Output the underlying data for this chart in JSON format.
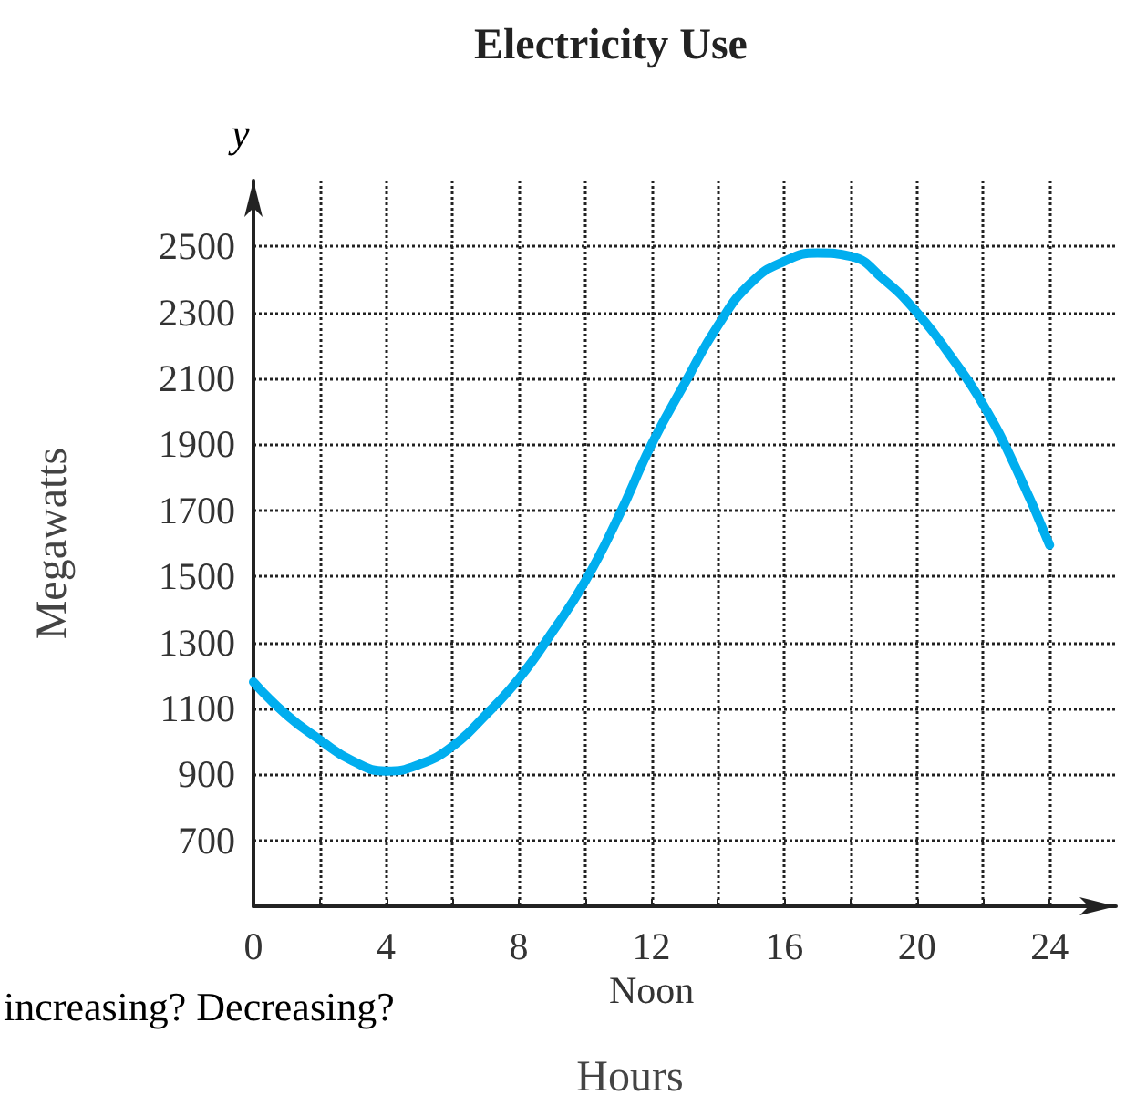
{
  "chart_data": {
    "type": "line",
    "title": "Electricity Use",
    "xlabel": "Hours",
    "ylabel": "Megawatts",
    "annotations": [
      "y",
      "increasing? Decreasing?"
    ],
    "x": [
      0,
      1,
      2,
      3,
      4,
      5,
      6,
      7,
      8,
      9,
      10,
      11,
      12,
      13,
      14,
      15,
      16,
      17,
      18,
      19,
      20,
      21,
      22,
      23,
      24
    ],
    "series": [
      {
        "color": "#00aeef",
        "values": [
          1180,
          1080,
          1005,
          940,
          910,
          930,
          985,
          1080,
          1190,
          1330,
          1485,
          1680,
          1900,
          2085,
          2260,
          2390,
          2455,
          2480,
          2470,
          2400,
          2300,
          2170,
          2020,
          1825,
          1595
        ]
      }
    ],
    "xlim": [
      0,
      26
    ],
    "ylim": [
      500,
      2700
    ],
    "xticks": [
      0,
      {
        "value": 2,
        "label": null
      },
      4,
      {
        "value": 6,
        "label": null
      },
      8,
      {
        "value": 10,
        "label": null
      },
      {
        "value": 12,
        "label": "12\nNoon"
      },
      {
        "value": 14,
        "label": null
      },
      16,
      {
        "value": 18,
        "label": null
      },
      20,
      {
        "value": 22,
        "label": null
      },
      24
    ],
    "yticks": [
      700,
      900,
      1100,
      1300,
      1500,
      1700,
      1900,
      2100,
      2300,
      2500
    ],
    "grid": true,
    "marker": "none",
    "line_style": "solid"
  }
}
